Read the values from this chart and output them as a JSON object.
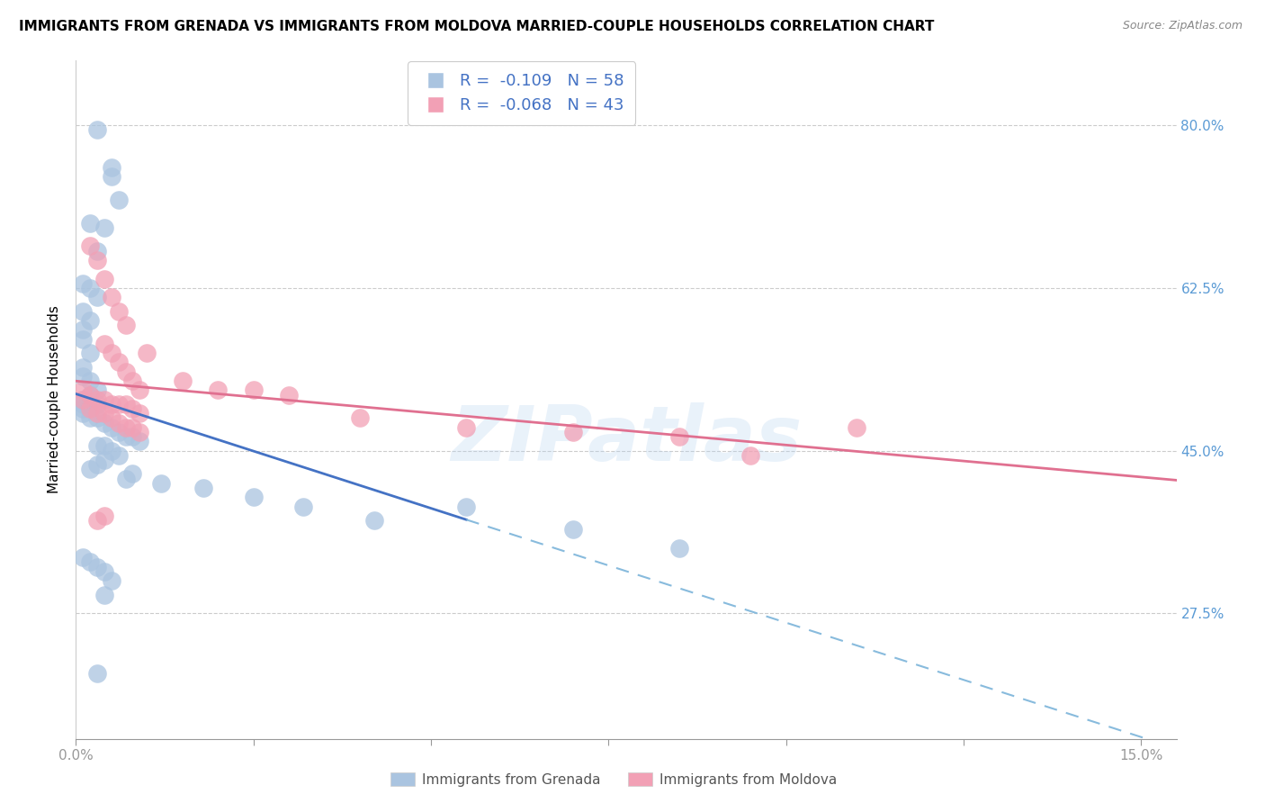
{
  "title": "IMMIGRANTS FROM GRENADA VS IMMIGRANTS FROM MOLDOVA MARRIED-COUPLE HOUSEHOLDS CORRELATION CHART",
  "source": "Source: ZipAtlas.com",
  "ylabel": "Married-couple Households",
  "xlim": [
    0.0,
    0.155
  ],
  "ylim": [
    0.14,
    0.87
  ],
  "ytick_positions": [
    0.275,
    0.45,
    0.625,
    0.8
  ],
  "ytick_labels": [
    "27.5%",
    "45.0%",
    "62.5%",
    "80.0%"
  ],
  "xtick_positions": [
    0.0,
    0.025,
    0.05,
    0.075,
    0.1,
    0.125,
    0.15
  ],
  "xtick_labels": [
    "0.0%",
    "",
    "",
    "",
    "",
    "",
    "15.0%"
  ],
  "grenada_color": "#aac4e0",
  "moldova_color": "#f2a0b5",
  "grenada_line_color": "#4472c4",
  "moldova_line_color": "#e07090",
  "grenada_R": -0.109,
  "grenada_N": 58,
  "moldova_R": -0.068,
  "moldova_N": 43,
  "grid_color": "#cccccc",
  "background_color": "#ffffff",
  "tick_color": "#5b9bd5",
  "title_fontsize": 11,
  "source_fontsize": 9,
  "ylabel_fontsize": 11,
  "legend_fontsize": 12,
  "tick_fontsize": 11,
  "grenada_x": [
    0.003,
    0.005,
    0.005,
    0.006,
    0.002,
    0.004,
    0.003,
    0.001,
    0.002,
    0.003,
    0.001,
    0.002,
    0.001,
    0.001,
    0.002,
    0.001,
    0.001,
    0.002,
    0.003,
    0.002,
    0.001,
    0.001,
    0.002,
    0.003,
    0.001,
    0.001,
    0.002,
    0.003,
    0.004,
    0.005,
    0.006,
    0.007,
    0.008,
    0.009,
    0.004,
    0.003,
    0.005,
    0.006,
    0.004,
    0.003,
    0.002,
    0.008,
    0.007,
    0.012,
    0.018,
    0.025,
    0.032,
    0.042,
    0.055,
    0.07,
    0.085,
    0.001,
    0.002,
    0.003,
    0.004,
    0.005,
    0.004,
    0.003
  ],
  "grenada_y": [
    0.795,
    0.755,
    0.745,
    0.72,
    0.695,
    0.69,
    0.665,
    0.63,
    0.625,
    0.615,
    0.6,
    0.59,
    0.58,
    0.57,
    0.555,
    0.54,
    0.53,
    0.525,
    0.515,
    0.51,
    0.505,
    0.5,
    0.5,
    0.5,
    0.495,
    0.49,
    0.485,
    0.485,
    0.48,
    0.475,
    0.47,
    0.465,
    0.465,
    0.46,
    0.455,
    0.455,
    0.45,
    0.445,
    0.44,
    0.435,
    0.43,
    0.425,
    0.42,
    0.415,
    0.41,
    0.4,
    0.39,
    0.375,
    0.39,
    0.365,
    0.345,
    0.335,
    0.33,
    0.325,
    0.32,
    0.31,
    0.295,
    0.21
  ],
  "moldova_x": [
    0.001,
    0.001,
    0.002,
    0.002,
    0.003,
    0.003,
    0.004,
    0.004,
    0.005,
    0.005,
    0.006,
    0.006,
    0.007,
    0.007,
    0.008,
    0.008,
    0.009,
    0.009,
    0.002,
    0.003,
    0.004,
    0.005,
    0.006,
    0.007,
    0.004,
    0.005,
    0.006,
    0.007,
    0.008,
    0.009,
    0.01,
    0.015,
    0.02,
    0.025,
    0.03,
    0.04,
    0.055,
    0.07,
    0.085,
    0.095,
    0.11,
    0.003,
    0.004
  ],
  "moldova_y": [
    0.515,
    0.505,
    0.51,
    0.495,
    0.505,
    0.49,
    0.505,
    0.49,
    0.5,
    0.485,
    0.5,
    0.48,
    0.5,
    0.475,
    0.495,
    0.475,
    0.49,
    0.47,
    0.67,
    0.655,
    0.635,
    0.615,
    0.6,
    0.585,
    0.565,
    0.555,
    0.545,
    0.535,
    0.525,
    0.515,
    0.555,
    0.525,
    0.515,
    0.515,
    0.51,
    0.485,
    0.475,
    0.47,
    0.465,
    0.445,
    0.475,
    0.375,
    0.38
  ]
}
